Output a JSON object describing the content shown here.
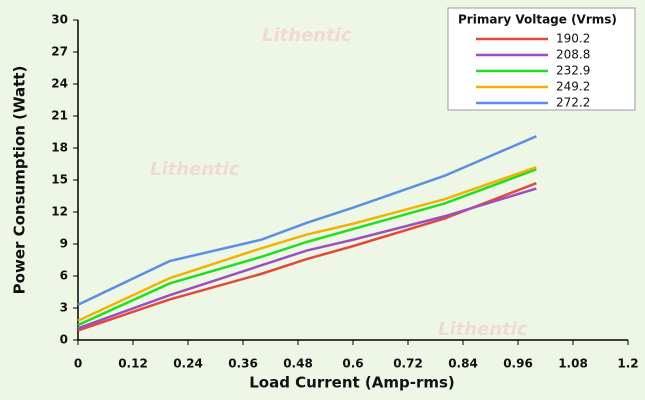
{
  "chart_data": {
    "type": "line",
    "x_label": "Load Current (Amp-rms)",
    "y_label": "Power Consumption (Watt)",
    "legend_title": "Primary Voltage (Vrms)",
    "legend": "top-right",
    "watermark": "Lithentic",
    "x": [
      0,
      0.2,
      0.4,
      0.5,
      0.6,
      0.8,
      1.0
    ],
    "xlim": [
      0,
      1.2
    ],
    "xticks": [
      0,
      0.12,
      0.24,
      0.36,
      0.48,
      0.6,
      0.72,
      0.84,
      0.96,
      1.08,
      1.2
    ],
    "ylim": [
      0,
      30
    ],
    "yticks": [
      0,
      3,
      6,
      9,
      12,
      15,
      18,
      21,
      24,
      27,
      30
    ],
    "series": [
      {
        "name": "190.2",
        "color": "#e04a3a",
        "values": [
          0.9,
          3.8,
          6.2,
          7.6,
          8.8,
          11.4,
          14.7
        ]
      },
      {
        "name": "208.8",
        "color": "#9b4fc0",
        "values": [
          1.1,
          4.2,
          7.0,
          8.4,
          9.4,
          11.6,
          14.2
        ]
      },
      {
        "name": "232.9",
        "color": "#22dd22",
        "values": [
          1.4,
          5.3,
          7.8,
          9.2,
          10.4,
          12.8,
          16.0
        ]
      },
      {
        "name": "249.2",
        "color": "#f0b400",
        "values": [
          1.8,
          5.8,
          8.6,
          9.9,
          10.9,
          13.2,
          16.2
        ]
      },
      {
        "name": "272.2",
        "color": "#5b8fe0",
        "values": [
          3.3,
          7.4,
          9.4,
          11.0,
          12.4,
          15.4,
          19.1
        ]
      }
    ]
  }
}
